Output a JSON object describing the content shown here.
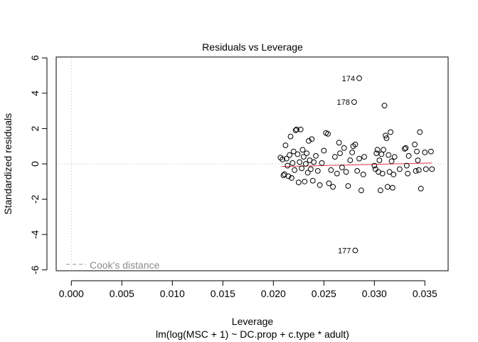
{
  "chart_data": {
    "type": "scatter",
    "title": "Residuals vs Leverage",
    "xlabel": "Leverage",
    "ylabel": "Standardized residuals",
    "subtitle": "lm(log(MSC + 1) ~ DC.prop + c.type * adult)",
    "xlim": [
      -0.0015,
      0.0373
    ],
    "ylim": [
      -6.05,
      6.05
    ],
    "x_ticks": [
      0.0,
      0.005,
      0.01,
      0.015,
      0.02,
      0.025,
      0.03,
      0.035
    ],
    "x_tick_labels": [
      "0.000",
      "0.005",
      "0.010",
      "0.015",
      "0.020",
      "0.025",
      "0.030",
      "0.035"
    ],
    "y_ticks": [
      -6,
      -4,
      -2,
      0,
      2,
      4,
      6
    ],
    "y_tick_labels": [
      "-6",
      "-4",
      "-2",
      "0",
      "2",
      "4",
      "6"
    ],
    "grid": false,
    "reference_lines": {
      "x": 0,
      "y": 0
    },
    "legend": {
      "label": "Cook's distance",
      "position": "bottom-left"
    },
    "colors": {
      "points": "#000000",
      "smooth": "#e8344a",
      "reference": "#bbbbbb",
      "legend_text": "#8c8c8c"
    },
    "labeled_points": [
      {
        "label": "174",
        "x": 0.0285,
        "y": 4.85
      },
      {
        "label": "178",
        "x": 0.028,
        "y": 3.5
      },
      {
        "label": "177",
        "x": 0.0281,
        "y": -4.9
      }
    ],
    "smooth_line": {
      "x": [
        0.0208,
        0.0357
      ],
      "y": [
        -0.15,
        0.05
      ]
    },
    "points": [
      [
        0.0207,
        0.35
      ],
      [
        0.0209,
        0.25
      ],
      [
        0.021,
        -0.65
      ],
      [
        0.0211,
        -0.58
      ],
      [
        0.0212,
        1.05
      ],
      [
        0.0213,
        0.3
      ],
      [
        0.0214,
        -0.1
      ],
      [
        0.0215,
        -0.7
      ],
      [
        0.0216,
        0.5
      ],
      [
        0.0217,
        1.55
      ],
      [
        0.0218,
        -0.8
      ],
      [
        0.0219,
        0.05
      ],
      [
        0.022,
        0.7
      ],
      [
        0.0221,
        -0.35
      ],
      [
        0.0222,
        1.9
      ],
      [
        0.0223,
        1.95
      ],
      [
        0.0224,
        0.55
      ],
      [
        0.0225,
        -1.05
      ],
      [
        0.0226,
        0.1
      ],
      [
        0.0227,
        1.95
      ],
      [
        0.0228,
        -0.25
      ],
      [
        0.0229,
        0.8
      ],
      [
        0.023,
        0.4
      ],
      [
        0.0231,
        -1.0
      ],
      [
        0.0232,
        0.0
      ],
      [
        0.0233,
        0.6
      ],
      [
        0.0234,
        -0.5
      ],
      [
        0.0235,
        1.3
      ],
      [
        0.0236,
        0.2
      ],
      [
        0.0237,
        -0.3
      ],
      [
        0.0238,
        1.4
      ],
      [
        0.0239,
        -0.95
      ],
      [
        0.024,
        0.1
      ],
      [
        0.0242,
        0.45
      ],
      [
        0.0244,
        -0.4
      ],
      [
        0.0246,
        -1.2
      ],
      [
        0.0248,
        0.05
      ],
      [
        0.025,
        0.75
      ],
      [
        0.0252,
        1.75
      ],
      [
        0.0254,
        1.7
      ],
      [
        0.0255,
        -1.1
      ],
      [
        0.0257,
        -0.35
      ],
      [
        0.0259,
        -1.3
      ],
      [
        0.0261,
        0.4
      ],
      [
        0.0263,
        -0.55
      ],
      [
        0.0265,
        1.2
      ],
      [
        0.0266,
        0.6
      ],
      [
        0.0268,
        -0.2
      ],
      [
        0.027,
        0.9
      ],
      [
        0.0272,
        -0.45
      ],
      [
        0.0274,
        -1.25
      ],
      [
        0.0276,
        0.2
      ],
      [
        0.0278,
        0.65
      ],
      [
        0.0279,
        1.0
      ],
      [
        0.0281,
        1.1
      ],
      [
        0.0283,
        -0.4
      ],
      [
        0.0285,
        0.3
      ],
      [
        0.0287,
        -1.5
      ],
      [
        0.0289,
        -0.6
      ],
      [
        0.029,
        0.4
      ],
      [
        0.03,
        -0.1
      ],
      [
        0.0301,
        -0.3
      ],
      [
        0.0302,
        0.6
      ],
      [
        0.0303,
        0.8
      ],
      [
        0.0304,
        -0.45
      ],
      [
        0.0305,
        0.2
      ],
      [
        0.0306,
        -1.5
      ],
      [
        0.0307,
        0.55
      ],
      [
        0.0308,
        -0.55
      ],
      [
        0.0309,
        0.8
      ],
      [
        0.031,
        3.3
      ],
      [
        0.0311,
        1.6
      ],
      [
        0.0312,
        1.45
      ],
      [
        0.0313,
        -1.3
      ],
      [
        0.0314,
        0.5
      ],
      [
        0.0315,
        -0.45
      ],
      [
        0.0316,
        1.8
      ],
      [
        0.0317,
        0.15
      ],
      [
        0.0318,
        -1.35
      ],
      [
        0.0319,
        -0.6
      ],
      [
        0.032,
        0.4
      ],
      [
        0.0325,
        -0.3
      ],
      [
        0.033,
        0.85
      ],
      [
        0.0331,
        0.9
      ],
      [
        0.0332,
        -0.1
      ],
      [
        0.0333,
        -0.55
      ],
      [
        0.0334,
        0.45
      ],
      [
        0.034,
        1.1
      ],
      [
        0.0341,
        -0.4
      ],
      [
        0.0342,
        0.7
      ],
      [
        0.0343,
        0.2
      ],
      [
        0.0344,
        -0.35
      ],
      [
        0.0345,
        1.8
      ],
      [
        0.0346,
        -1.4
      ],
      [
        0.035,
        0.65
      ],
      [
        0.0351,
        -0.3
      ],
      [
        0.0356,
        0.7
      ],
      [
        0.0357,
        -0.3
      ]
    ]
  }
}
